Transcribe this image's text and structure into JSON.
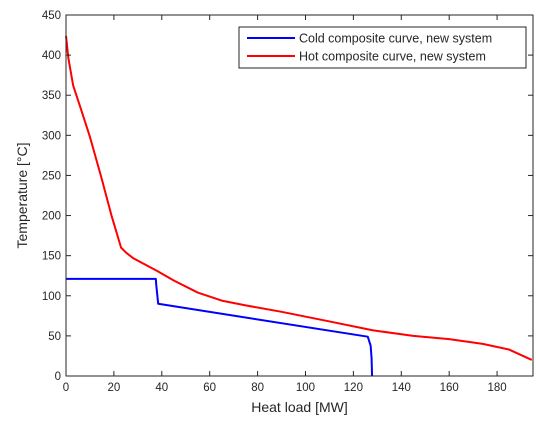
{
  "chart_data": {
    "type": "line",
    "xlabel": "Heat load [MW]",
    "ylabel": "Temperature [°C]",
    "xlim": [
      0,
      195
    ],
    "ylim": [
      0,
      450
    ],
    "xticks": [
      0,
      20,
      40,
      60,
      80,
      100,
      120,
      140,
      160,
      180
    ],
    "yticks": [
      0,
      50,
      100,
      150,
      200,
      250,
      300,
      350,
      400,
      450
    ],
    "grid": false,
    "legend_position": "top-right",
    "series": [
      {
        "name": "Cold composite curve, new system",
        "color": "#0000ff",
        "x": [
          0,
          37.5,
          37.7,
          38.5,
          126,
          127.2,
          127.6,
          127.8
        ],
        "y": [
          121,
          121,
          113,
          90,
          49,
          38,
          22,
          0
        ]
      },
      {
        "name": "Hot composite curve, new system",
        "color": "#ff0000",
        "x": [
          0,
          1,
          3,
          6,
          10,
          15,
          19,
          22,
          23,
          25,
          28,
          33,
          38,
          45,
          55,
          65,
          75,
          90,
          110,
          128,
          145,
          160,
          174,
          185,
          194.5
        ],
        "y": [
          424,
          396,
          362,
          335,
          298,
          245,
          200,
          170,
          160,
          154,
          147,
          139,
          131,
          119,
          104,
          94,
          88,
          80,
          68,
          57,
          50,
          46,
          40,
          33,
          20
        ]
      }
    ]
  }
}
